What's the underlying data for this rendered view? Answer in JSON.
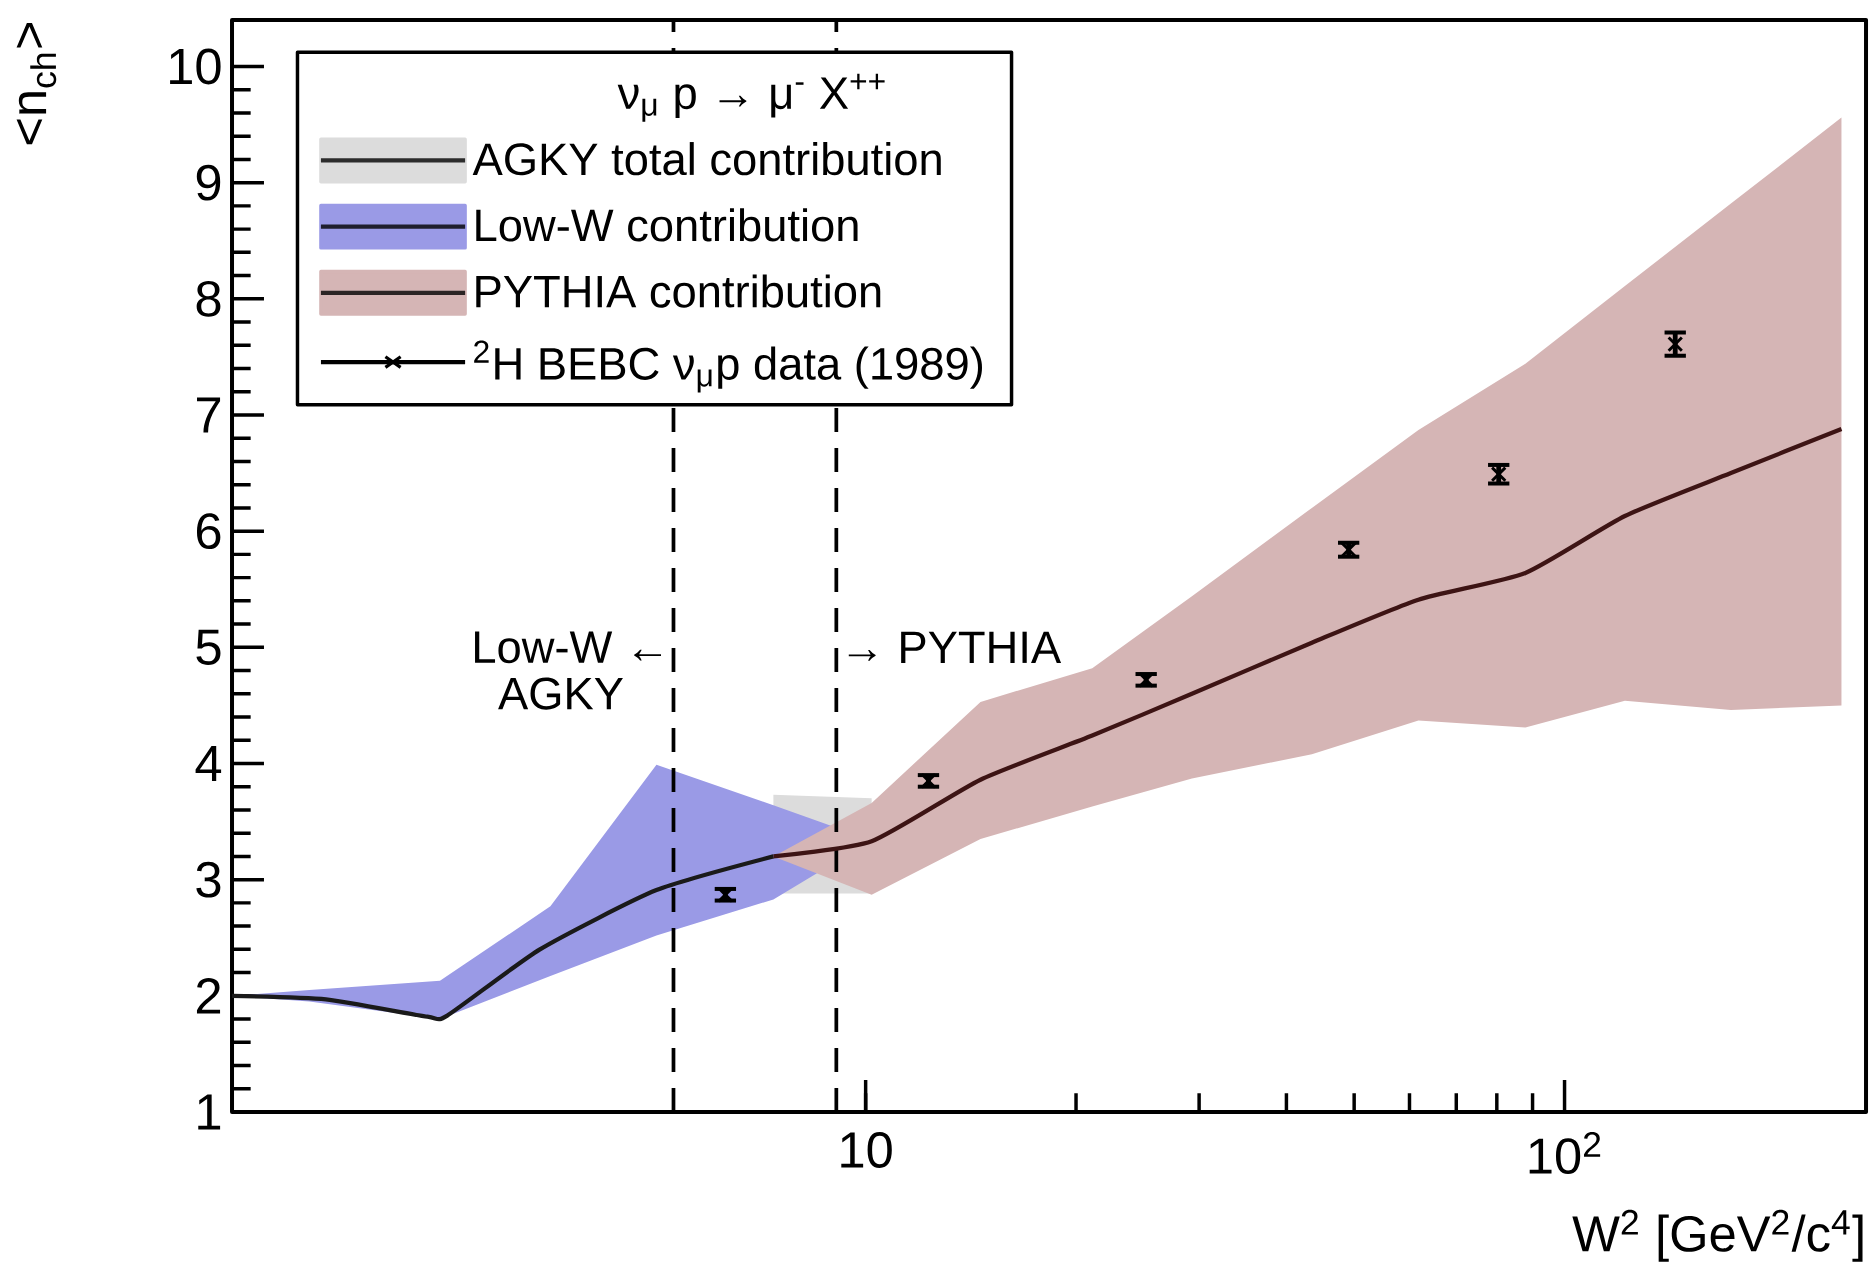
{
  "chart_data": {
    "type": "line",
    "log": "x",
    "xlim": [
      1.24,
      270
    ],
    "ylim": [
      1,
      10.4
    ],
    "xticks": [
      {
        "value": 10,
        "label": "10"
      },
      {
        "value": 100,
        "label": "10$^{2}$"
      }
    ],
    "yticks": [
      1,
      2,
      3,
      4,
      5,
      6,
      7,
      8,
      9,
      10
    ],
    "xlabel": "W$^{2}$ [GeV$^{2}$/c$^{4}$]",
    "ylabel": "<n$_{ch}$>",
    "legend": "top left",
    "legend_title": "ν$_{μ}$ p → μ$^{-}$ X$^{++}$",
    "series": [
      {
        "name": "AGKY total contribution",
        "color": "#dcdcdc",
        "x": [
          7.38,
          10.2
        ],
        "values": [
          null,
          null
        ],
        "lower": [
          2.88,
          2.88
        ],
        "upper": [
          3.73,
          3.7
        ]
      },
      {
        "color": "#1a1a1a",
        "x": [
          1.24,
          1.69,
          2.36,
          2.52,
          3.42,
          5.02,
          7.38
        ],
        "values": [
          2.0,
          1.97,
          1.82,
          1.83,
          2.4,
          2.91,
          3.2
        ]
      },
      {
        "name": "Low-W contribution",
        "color": "#9a9ae6",
        "x": [
          1.24,
          1.6,
          2.46,
          3.54,
          5.02,
          7.38,
          10.2
        ],
        "values": [
          null,
          null,
          null,
          null,
          null,
          null,
          null
        ],
        "lower": [
          2.0,
          1.95,
          1.8,
          2.17,
          2.52,
          2.83,
          3.34
        ],
        "upper": [
          2.0,
          2.05,
          2.13,
          2.77,
          3.99,
          3.64,
          3.34
        ]
      },
      {
        "name": "PYTHIA contribution",
        "color": "#d5b5b5",
        "x": [
          7.38,
          10.2,
          14.6,
          21.1,
          29.3,
          43.5,
          61.8,
          87.9,
          122,
          173,
          249
        ],
        "values": [
          null,
          null,
          null,
          null,
          null,
          null,
          null,
          null,
          null,
          null,
          null
        ],
        "lower": [
          3.2,
          2.87,
          3.35,
          3.63,
          3.87,
          4.08,
          4.37,
          4.31,
          4.54,
          4.46,
          4.5
        ],
        "upper": [
          3.2,
          3.66,
          4.53,
          4.82,
          5.44,
          6.2,
          6.87,
          7.44,
          8.11,
          8.82,
          9.56
        ]
      },
      {
        "color": "#3d1414",
        "x": [
          7.38,
          10.2,
          14.6,
          21.1,
          29.3,
          43.5,
          61.8,
          87.9,
          122,
          173,
          249
        ],
        "values": [
          3.2,
          3.33,
          3.86,
          4.24,
          4.6,
          5.04,
          5.41,
          5.64,
          6.13,
          6.5,
          6.88
        ]
      },
      {
        "name": "$^{2}$H BEBC ν$_{μ}$p data (1989)",
        "type": "scatter",
        "color": "#000000",
        "marker": "cross",
        "x": [
          6.3,
          12.3,
          25.2,
          49.1,
          80.5,
          144
        ],
        "values": [
          2.87,
          3.85,
          4.72,
          5.84,
          6.49,
          7.61
        ],
        "errors": [
          0.05,
          0.05,
          0.05,
          0.06,
          0.08,
          0.1
        ]
      }
    ],
    "ref_lines": [
      {
        "axis": "x",
        "value": 5.31,
        "label": "Low-W ←",
        "line_style": "dashed"
      },
      {
        "axis": "x",
        "value": 9.08,
        "label": "→ PYTHIA",
        "line_style": "dashed"
      }
    ],
    "annotations": [
      "AGKY"
    ]
  }
}
